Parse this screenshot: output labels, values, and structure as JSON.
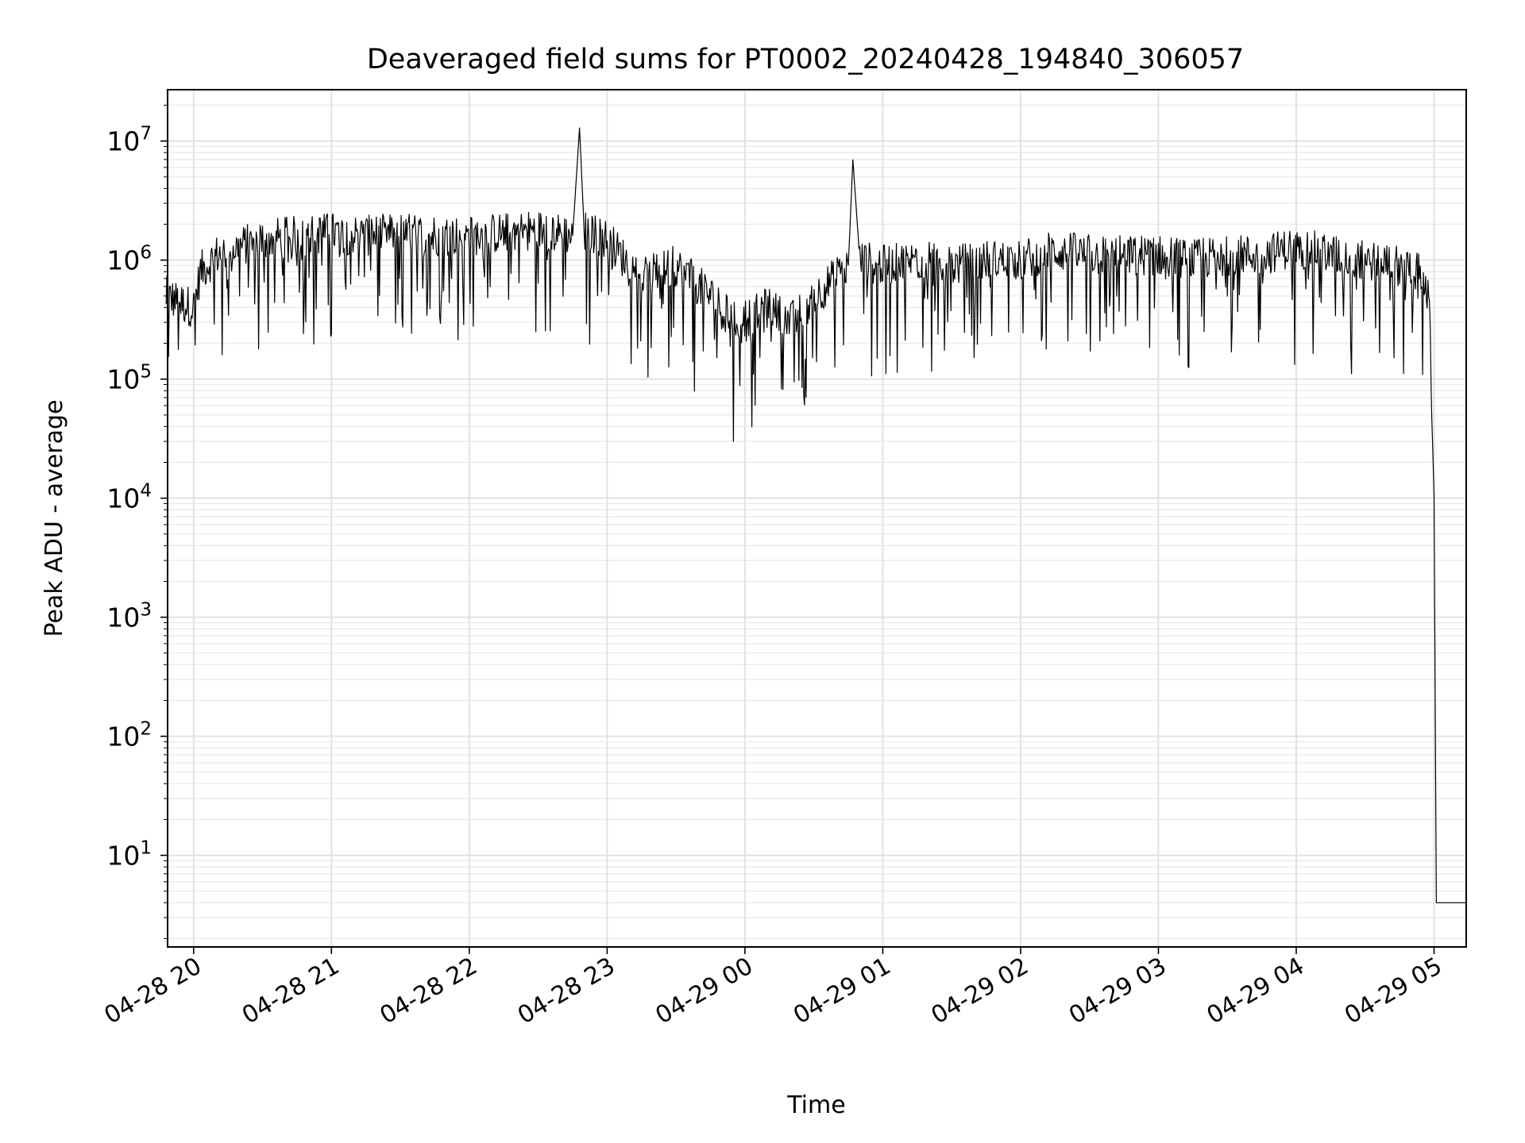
{
  "chart_data": {
    "type": "line",
    "title": "Deaveraged field sums for PT0002_20240428_194840_306057",
    "xlabel": "Time",
    "ylabel": "Peak ADU - average",
    "y_scale": "log",
    "ylim": [
      1.7,
      27000000
    ],
    "xlim": [
      "2024-04-28 19:48:40",
      "2024-04-29 05:14:00"
    ],
    "x_tick_labels": [
      "04-28 20",
      "04-28 21",
      "04-28 22",
      "04-28 23",
      "04-29 00",
      "04-29 01",
      "04-29 02",
      "04-29 03",
      "04-29 04",
      "04-29 05"
    ],
    "x_tick_values": [
      "2024-04-28 20:00",
      "2024-04-28 21:00",
      "2024-04-28 22:00",
      "2024-04-28 23:00",
      "2024-04-29 00:00",
      "2024-04-29 01:00",
      "2024-04-29 02:00",
      "2024-04-29 03:00",
      "2024-04-29 04:00",
      "2024-04-29 05:00"
    ],
    "y_tick_values": [
      10,
      100,
      1000,
      10000,
      100000,
      1000000,
      10000000
    ],
    "y_tick_labels": [
      {
        "base": "10",
        "exp": "1"
      },
      {
        "base": "10",
        "exp": "2"
      },
      {
        "base": "10",
        "exp": "3"
      },
      {
        "base": "10",
        "exp": "4"
      },
      {
        "base": "10",
        "exp": "5"
      },
      {
        "base": "10",
        "exp": "6"
      },
      {
        "base": "10",
        "exp": "7"
      }
    ],
    "grid": "major and minor",
    "line_color": "#000000",
    "series": [
      {
        "x": [
          "2024-04-28 19:48",
          "2024-04-28 19:53",
          "2024-04-28 20:00",
          "2024-04-28 20:03",
          "2024-04-28 20:10",
          "2024-04-28 20:20",
          "2024-04-28 20:30",
          "2024-04-28 20:45",
          "2024-04-28 21:00",
          "2024-04-28 21:15",
          "2024-04-28 21:30",
          "2024-04-28 21:45",
          "2024-04-28 22:00",
          "2024-04-28 22:15",
          "2024-04-28 22:30",
          "2024-04-28 22:45",
          "2024-04-28 22:48",
          "2024-04-28 22:50",
          "2024-04-28 23:00",
          "2024-04-28 23:15",
          "2024-04-28 23:30",
          "2024-04-28 23:45",
          "2024-04-28 23:55",
          "2024-04-29 00:10",
          "2024-04-29 00:20",
          "2024-04-29 00:35",
          "2024-04-29 00:45",
          "2024-04-29 00:47",
          "2024-04-29 00:50",
          "2024-04-29 01:00",
          "2024-04-29 01:15",
          "2024-04-29 01:30",
          "2024-04-29 01:45",
          "2024-04-29 02:00",
          "2024-04-29 02:15",
          "2024-04-29 02:30",
          "2024-04-29 02:45",
          "2024-04-29 03:00",
          "2024-04-29 03:15",
          "2024-04-29 03:30",
          "2024-04-29 03:45",
          "2024-04-29 04:00",
          "2024-04-29 04:15",
          "2024-04-29 04:30",
          "2024-04-29 04:45",
          "2024-04-29 04:55",
          "2024-04-29 04:58",
          "2024-04-29 05:00",
          "2024-04-29 05:01",
          "2024-04-29 05:02",
          "2024-04-29 05:14"
        ],
        "y": [
          500000,
          450000,
          400000,
          800000,
          1100000,
          1300000,
          1500000,
          1600000,
          1700000,
          1600000,
          1700000,
          1600000,
          1600000,
          1700000,
          1800000,
          1600000,
          13000000,
          1800000,
          1500000,
          700000,
          900000,
          500000,
          300000,
          400000,
          300000,
          600000,
          900000,
          7000000,
          1000000,
          900000,
          1000000,
          900000,
          1000000,
          1000000,
          1200000,
          1100000,
          1100000,
          1100000,
          1000000,
          1100000,
          1100000,
          1300000,
          1100000,
          1000000,
          900000,
          800000,
          400000,
          10000,
          4,
          4,
          4
        ]
      }
    ]
  }
}
